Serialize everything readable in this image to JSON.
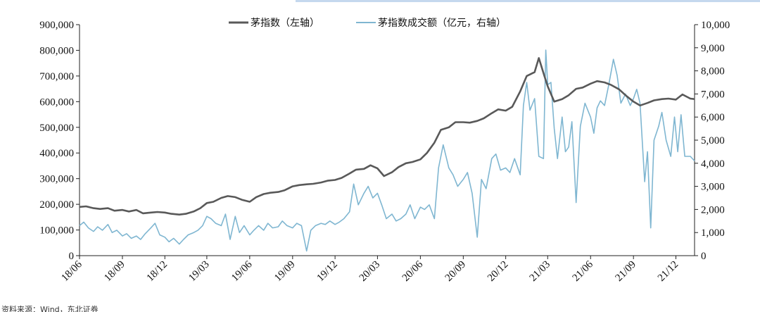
{
  "chart_data": {
    "type": "line",
    "title": "",
    "xlabel": "",
    "ylabel_left": "",
    "ylabel_right": "",
    "legend_placement": "top-center",
    "grid": false,
    "y_left": {
      "lim": [
        0,
        900000
      ],
      "ticks": [
        "0",
        "100,000",
        "200,000",
        "300,000",
        "400,000",
        "500,000",
        "600,000",
        "700,000",
        "800,000",
        "900,000"
      ]
    },
    "y_right": {
      "lim": [
        0,
        10000
      ],
      "ticks": [
        "0",
        "1,000",
        "2,000",
        "3,000",
        "4,000",
        "5,000",
        "6,000",
        "7,000",
        "8,000",
        "9,000",
        "10,000"
      ]
    },
    "x_range": [
      "2018-06-01",
      "2022-01-10"
    ],
    "x_ticks": [
      {
        "label": "18/06",
        "date": "2018-06-01"
      },
      {
        "label": "18/09",
        "date": "2018-09-01"
      },
      {
        "label": "18/12",
        "date": "2018-12-01"
      },
      {
        "label": "19/03",
        "date": "2019-03-01"
      },
      {
        "label": "19/06",
        "date": "2019-06-01"
      },
      {
        "label": "19/09",
        "date": "2019-09-01"
      },
      {
        "label": "19/12",
        "date": "2019-12-01"
      },
      {
        "label": "20/03",
        "date": "2020-03-01"
      },
      {
        "label": "20/06",
        "date": "2020-06-01"
      },
      {
        "label": "20/09",
        "date": "2020-09-01"
      },
      {
        "label": "20/12",
        "date": "2020-12-01"
      },
      {
        "label": "21/03",
        "date": "2021-03-01"
      },
      {
        "label": "21/06",
        "date": "2021-06-01"
      },
      {
        "label": "21/09",
        "date": "2021-09-01"
      },
      {
        "label": "21/12",
        "date": "2021-12-01"
      }
    ],
    "series": [
      {
        "name": "茅指数（左轴）",
        "axis": "left",
        "color": "#595959",
        "points": [
          [
            "2018-06-01",
            190000
          ],
          [
            "2018-06-15",
            192000
          ],
          [
            "2018-07-01",
            185000
          ],
          [
            "2018-07-15",
            182000
          ],
          [
            "2018-08-01",
            185000
          ],
          [
            "2018-08-15",
            175000
          ],
          [
            "2018-09-01",
            178000
          ],
          [
            "2018-09-15",
            172000
          ],
          [
            "2018-10-01",
            178000
          ],
          [
            "2018-10-15",
            165000
          ],
          [
            "2018-11-01",
            168000
          ],
          [
            "2018-11-15",
            170000
          ],
          [
            "2018-12-01",
            168000
          ],
          [
            "2018-12-15",
            163000
          ],
          [
            "2019-01-01",
            160000
          ],
          [
            "2019-01-15",
            163000
          ],
          [
            "2019-02-01",
            172000
          ],
          [
            "2019-02-15",
            185000
          ],
          [
            "2019-03-01",
            205000
          ],
          [
            "2019-03-15",
            210000
          ],
          [
            "2019-04-01",
            225000
          ],
          [
            "2019-04-15",
            232000
          ],
          [
            "2019-05-01",
            228000
          ],
          [
            "2019-05-15",
            218000
          ],
          [
            "2019-06-01",
            210000
          ],
          [
            "2019-06-15",
            228000
          ],
          [
            "2019-07-01",
            240000
          ],
          [
            "2019-07-15",
            245000
          ],
          [
            "2019-08-01",
            248000
          ],
          [
            "2019-08-15",
            255000
          ],
          [
            "2019-09-01",
            270000
          ],
          [
            "2019-09-15",
            275000
          ],
          [
            "2019-10-01",
            278000
          ],
          [
            "2019-10-15",
            280000
          ],
          [
            "2019-11-01",
            285000
          ],
          [
            "2019-11-15",
            292000
          ],
          [
            "2019-12-01",
            295000
          ],
          [
            "2019-12-15",
            303000
          ],
          [
            "2020-01-01",
            320000
          ],
          [
            "2020-01-15",
            335000
          ],
          [
            "2020-02-01",
            338000
          ],
          [
            "2020-02-15",
            352000
          ],
          [
            "2020-03-01",
            340000
          ],
          [
            "2020-03-15",
            310000
          ],
          [
            "2020-04-01",
            325000
          ],
          [
            "2020-04-15",
            345000
          ],
          [
            "2020-05-01",
            360000
          ],
          [
            "2020-05-15",
            365000
          ],
          [
            "2020-06-01",
            375000
          ],
          [
            "2020-06-15",
            400000
          ],
          [
            "2020-07-01",
            440000
          ],
          [
            "2020-07-15",
            490000
          ],
          [
            "2020-08-01",
            500000
          ],
          [
            "2020-08-15",
            520000
          ],
          [
            "2020-09-01",
            520000
          ],
          [
            "2020-09-15",
            518000
          ],
          [
            "2020-10-01",
            525000
          ],
          [
            "2020-10-15",
            535000
          ],
          [
            "2020-11-01",
            555000
          ],
          [
            "2020-11-15",
            570000
          ],
          [
            "2020-12-01",
            565000
          ],
          [
            "2020-12-15",
            580000
          ],
          [
            "2021-01-01",
            640000
          ],
          [
            "2021-01-15",
            700000
          ],
          [
            "2021-02-01",
            715000
          ],
          [
            "2021-02-10",
            770000
          ],
          [
            "2021-02-22",
            700000
          ],
          [
            "2021-03-01",
            660000
          ],
          [
            "2021-03-15",
            600000
          ],
          [
            "2021-04-01",
            610000
          ],
          [
            "2021-04-15",
            625000
          ],
          [
            "2021-05-01",
            650000
          ],
          [
            "2021-05-15",
            655000
          ],
          [
            "2021-06-01",
            670000
          ],
          [
            "2021-06-15",
            680000
          ],
          [
            "2021-07-01",
            675000
          ],
          [
            "2021-07-15",
            665000
          ],
          [
            "2021-08-01",
            648000
          ],
          [
            "2021-08-15",
            625000
          ],
          [
            "2021-09-01",
            600000
          ],
          [
            "2021-09-15",
            585000
          ],
          [
            "2021-10-01",
            595000
          ],
          [
            "2021-10-15",
            605000
          ],
          [
            "2021-11-01",
            610000
          ],
          [
            "2021-11-15",
            612000
          ],
          [
            "2021-12-01",
            608000
          ],
          [
            "2021-12-15",
            628000
          ],
          [
            "2022-01-01",
            612000
          ],
          [
            "2022-01-10",
            610000
          ]
        ]
      },
      {
        "name": "茅指数成交额（亿元，右轴）",
        "axis": "right",
        "color": "#7fb6d1",
        "points": [
          [
            "2018-06-01",
            1300
          ],
          [
            "2018-06-10",
            1450
          ],
          [
            "2018-06-20",
            1200
          ],
          [
            "2018-07-01",
            1050
          ],
          [
            "2018-07-10",
            1250
          ],
          [
            "2018-07-20",
            1100
          ],
          [
            "2018-08-01",
            1350
          ],
          [
            "2018-08-10",
            1000
          ],
          [
            "2018-08-20",
            1100
          ],
          [
            "2018-09-01",
            850
          ],
          [
            "2018-09-10",
            950
          ],
          [
            "2018-09-20",
            750
          ],
          [
            "2018-10-01",
            850
          ],
          [
            "2018-10-10",
            700
          ],
          [
            "2018-10-20",
            950
          ],
          [
            "2018-11-01",
            1200
          ],
          [
            "2018-11-10",
            1400
          ],
          [
            "2018-11-20",
            900
          ],
          [
            "2018-12-01",
            800
          ],
          [
            "2018-12-10",
            600
          ],
          [
            "2018-12-20",
            750
          ],
          [
            "2019-01-01",
            500
          ],
          [
            "2019-01-10",
            700
          ],
          [
            "2019-01-20",
            900
          ],
          [
            "2019-02-01",
            1000
          ],
          [
            "2019-02-10",
            1100
          ],
          [
            "2019-02-20",
            1300
          ],
          [
            "2019-03-01",
            1700
          ],
          [
            "2019-03-10",
            1600
          ],
          [
            "2019-03-20",
            1400
          ],
          [
            "2019-04-01",
            1300
          ],
          [
            "2019-04-10",
            1800
          ],
          [
            "2019-04-20",
            700
          ],
          [
            "2019-05-01",
            1700
          ],
          [
            "2019-05-10",
            1000
          ],
          [
            "2019-05-20",
            1300
          ],
          [
            "2019-06-01",
            900
          ],
          [
            "2019-06-10",
            1100
          ],
          [
            "2019-06-20",
            1300
          ],
          [
            "2019-07-01",
            1100
          ],
          [
            "2019-07-10",
            1400
          ],
          [
            "2019-07-20",
            1200
          ],
          [
            "2019-08-01",
            1250
          ],
          [
            "2019-08-10",
            1500
          ],
          [
            "2019-08-20",
            1300
          ],
          [
            "2019-09-01",
            1200
          ],
          [
            "2019-09-10",
            1400
          ],
          [
            "2019-09-20",
            1300
          ],
          [
            "2019-10-01",
            200
          ],
          [
            "2019-10-10",
            1100
          ],
          [
            "2019-10-20",
            1300
          ],
          [
            "2019-11-01",
            1400
          ],
          [
            "2019-11-10",
            1350
          ],
          [
            "2019-11-20",
            1500
          ],
          [
            "2019-12-01",
            1350
          ],
          [
            "2019-12-10",
            1450
          ],
          [
            "2019-12-20",
            1600
          ],
          [
            "2020-01-01",
            1900
          ],
          [
            "2020-01-10",
            3100
          ],
          [
            "2020-01-20",
            2200
          ],
          [
            "2020-02-01",
            2700
          ],
          [
            "2020-02-10",
            3000
          ],
          [
            "2020-02-20",
            2500
          ],
          [
            "2020-03-01",
            2700
          ],
          [
            "2020-03-10",
            2200
          ],
          [
            "2020-03-20",
            1600
          ],
          [
            "2020-04-01",
            1800
          ],
          [
            "2020-04-10",
            1500
          ],
          [
            "2020-04-20",
            1600
          ],
          [
            "2020-05-01",
            1800
          ],
          [
            "2020-05-10",
            2200
          ],
          [
            "2020-05-20",
            1600
          ],
          [
            "2020-06-01",
            2100
          ],
          [
            "2020-06-10",
            2000
          ],
          [
            "2020-06-20",
            2200
          ],
          [
            "2020-07-01",
            1600
          ],
          [
            "2020-07-10",
            3800
          ],
          [
            "2020-07-20",
            4800
          ],
          [
            "2020-08-01",
            3800
          ],
          [
            "2020-08-10",
            3500
          ],
          [
            "2020-08-20",
            3000
          ],
          [
            "2020-09-01",
            3300
          ],
          [
            "2020-09-10",
            3600
          ],
          [
            "2020-09-20",
            2700
          ],
          [
            "2020-10-01",
            800
          ],
          [
            "2020-10-10",
            3300
          ],
          [
            "2020-10-20",
            2900
          ],
          [
            "2020-11-01",
            4200
          ],
          [
            "2020-11-10",
            4400
          ],
          [
            "2020-11-20",
            3700
          ],
          [
            "2020-12-01",
            3800
          ],
          [
            "2020-12-10",
            3600
          ],
          [
            "2020-12-20",
            4200
          ],
          [
            "2021-01-01",
            3500
          ],
          [
            "2021-01-08",
            6500
          ],
          [
            "2021-01-15",
            7500
          ],
          [
            "2021-01-22",
            6300
          ],
          [
            "2021-02-01",
            6800
          ],
          [
            "2021-02-10",
            4300
          ],
          [
            "2021-02-20",
            4200
          ],
          [
            "2021-02-25",
            8900
          ],
          [
            "2021-03-01",
            7400
          ],
          [
            "2021-03-08",
            7500
          ],
          [
            "2021-03-15",
            5500
          ],
          [
            "2021-03-22",
            4200
          ],
          [
            "2021-04-01",
            6000
          ],
          [
            "2021-04-08",
            4500
          ],
          [
            "2021-04-15",
            4700
          ],
          [
            "2021-04-22",
            5800
          ],
          [
            "2021-05-01",
            2300
          ],
          [
            "2021-05-10",
            5600
          ],
          [
            "2021-05-20",
            6600
          ],
          [
            "2021-06-01",
            6000
          ],
          [
            "2021-06-08",
            5300
          ],
          [
            "2021-06-15",
            6400
          ],
          [
            "2021-06-22",
            6700
          ],
          [
            "2021-07-01",
            6500
          ],
          [
            "2021-07-10",
            7400
          ],
          [
            "2021-07-20",
            8500
          ],
          [
            "2021-07-28",
            7800
          ],
          [
            "2021-08-05",
            6600
          ],
          [
            "2021-08-15",
            7000
          ],
          [
            "2021-08-25",
            6500
          ],
          [
            "2021-09-01",
            6800
          ],
          [
            "2021-09-08",
            7200
          ],
          [
            "2021-09-15",
            6600
          ],
          [
            "2021-09-25",
            3200
          ],
          [
            "2021-10-01",
            4500
          ],
          [
            "2021-10-08",
            1200
          ],
          [
            "2021-10-15",
            5000
          ],
          [
            "2021-10-25",
            5600
          ],
          [
            "2021-11-01",
            6200
          ],
          [
            "2021-11-10",
            5000
          ],
          [
            "2021-11-20",
            4300
          ],
          [
            "2021-11-28",
            6000
          ],
          [
            "2021-12-05",
            4500
          ],
          [
            "2021-12-12",
            6100
          ],
          [
            "2021-12-20",
            4300
          ],
          [
            "2022-01-01",
            4300
          ],
          [
            "2022-01-10",
            4100
          ]
        ]
      }
    ]
  },
  "footer_text": "资料来源：Wind，东北证券"
}
